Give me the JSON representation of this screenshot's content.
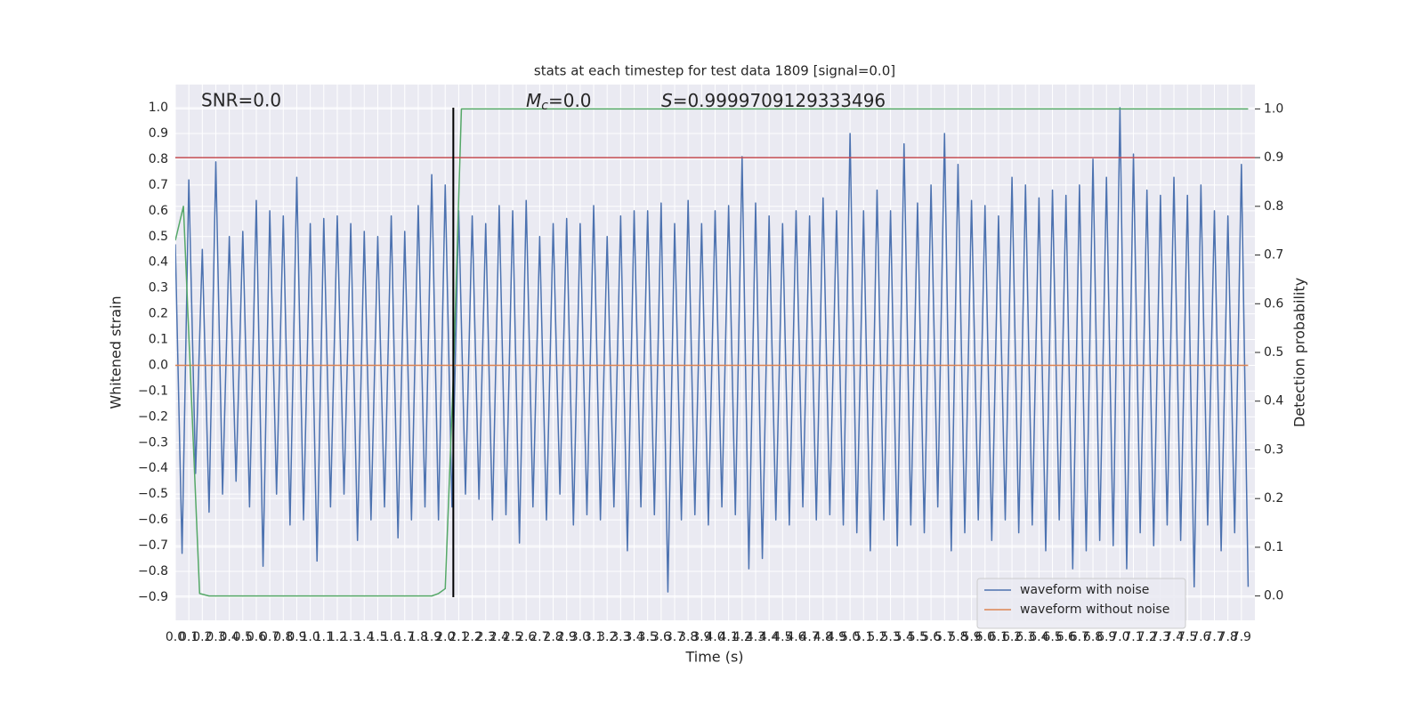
{
  "chart_data": {
    "type": "line",
    "title": "stats at each timestep for test data 1809 [signal=0.0]",
    "xlabel": "Time (s)",
    "ylabel": "Whitened strain",
    "y2label": "Detection probability",
    "annotations": {
      "snr": "SNR=0.0",
      "mc": {
        "symbol": "M",
        "subscript": "c",
        "text": "=0.0"
      },
      "s": {
        "symbol": "S",
        "text": "=0.9999709129333496"
      }
    },
    "xlim": [
      0,
      8.0
    ],
    "ylim": [
      -0.99,
      1.09
    ],
    "y2lim": [
      -0.05,
      1.05
    ],
    "grid": true,
    "legend": "lower right",
    "xticks": [
      {
        "value": 0,
        "label": "0.0"
      },
      0.1,
      0.2,
      0.3,
      0.4,
      0.5,
      0.6,
      0.7,
      0.8,
      0.9,
      {
        "value": 1,
        "label": "1.0"
      },
      1.1,
      1.2,
      1.3,
      1.4,
      1.5,
      1.6,
      1.7,
      1.8,
      1.9,
      {
        "value": 2,
        "label": "2.0"
      },
      2.1,
      2.2,
      2.3,
      2.4,
      2.5,
      2.6,
      2.7,
      2.8,
      2.9,
      {
        "value": 3,
        "label": "3.0"
      },
      3.1,
      3.2,
      3.3,
      3.4,
      3.5,
      3.6,
      3.7,
      3.8,
      3.9,
      {
        "value": 4,
        "label": "4.0"
      },
      4.1,
      4.2,
      4.3,
      4.4,
      4.5,
      4.6,
      4.7,
      4.8,
      4.9,
      {
        "value": 5,
        "label": "5.0"
      },
      5.1,
      5.2,
      5.3,
      5.4,
      5.5,
      5.6,
      5.7,
      5.8,
      5.9,
      {
        "value": 6,
        "label": "6.0"
      },
      6.1,
      6.2,
      6.3,
      6.4,
      6.5,
      6.6,
      6.7,
      6.8,
      6.9,
      {
        "value": 7,
        "label": "7.0"
      },
      7.1,
      7.2,
      7.3,
      7.4,
      7.5,
      7.6,
      7.7,
      7.8,
      7.9
    ],
    "yticks": [
      {
        "value": -0.9,
        "label": "−0.9"
      },
      {
        "value": -0.8,
        "label": "−0.8"
      },
      {
        "value": -0.7,
        "label": "−0.7"
      },
      {
        "value": -0.6,
        "label": "−0.6"
      },
      {
        "value": -0.5,
        "label": "−0.5"
      },
      {
        "value": -0.4,
        "label": "−0.4"
      },
      {
        "value": -0.3,
        "label": "−0.3"
      },
      {
        "value": -0.2,
        "label": "−0.2"
      },
      {
        "value": -0.1,
        "label": "−0.1"
      },
      {
        "value": 0,
        "label": "0.0"
      },
      0.1,
      0.2,
      0.3,
      0.4,
      0.5,
      0.6,
      0.7,
      0.8,
      0.9,
      {
        "value": 1,
        "label": "1.0"
      }
    ],
    "y2ticks": [
      {
        "value": 0,
        "label": "0.0"
      },
      0.1,
      0.2,
      0.3,
      0.4,
      0.5,
      0.6,
      0.7,
      0.8,
      0.9,
      {
        "value": 1,
        "label": "1.0"
      }
    ],
    "series": [
      {
        "name": "waveform with noise",
        "color": "#4c72b0",
        "x": [
          0,
          0.05,
          0.1,
          0.15,
          0.2,
          0.25,
          0.3,
          0.35,
          0.4,
          0.45,
          0.5,
          0.55,
          0.6,
          0.65,
          0.7,
          0.75,
          0.8,
          0.85,
          0.9,
          0.95,
          1,
          1.05,
          1.1,
          1.15,
          1.2,
          1.25,
          1.3,
          1.35,
          1.4,
          1.45,
          1.5,
          1.55,
          1.6,
          1.65,
          1.7,
          1.75,
          1.8,
          1.85,
          1.9,
          1.95,
          2,
          2.05,
          2.1,
          2.15,
          2.2,
          2.25,
          2.3,
          2.35,
          2.4,
          2.45,
          2.5,
          2.55,
          2.6,
          2.65,
          2.7,
          2.75,
          2.8,
          2.85,
          2.9,
          2.95,
          3,
          3.05,
          3.1,
          3.15,
          3.2,
          3.25,
          3.3,
          3.35,
          3.4,
          3.45,
          3.5,
          3.55,
          3.6,
          3.65,
          3.7,
          3.75,
          3.8,
          3.85,
          3.9,
          3.95,
          4,
          4.05,
          4.1,
          4.15,
          4.2,
          4.25,
          4.3,
          4.35,
          4.4,
          4.45,
          4.5,
          4.55,
          4.6,
          4.65,
          4.7,
          4.75,
          4.8,
          4.85,
          4.9,
          4.95,
          5,
          5.05,
          5.1,
          5.15,
          5.2,
          5.25,
          5.3,
          5.35,
          5.4,
          5.45,
          5.5,
          5.55,
          5.6,
          5.65,
          5.7,
          5.75,
          5.8,
          5.85,
          5.9,
          5.95,
          6,
          6.05,
          6.1,
          6.15,
          6.2,
          6.25,
          6.3,
          6.35,
          6.4,
          6.45,
          6.5,
          6.55,
          6.6,
          6.65,
          6.7,
          6.75,
          6.8,
          6.85,
          6.9,
          6.95,
          7,
          7.05,
          7.1,
          7.15,
          7.2,
          7.25,
          7.3,
          7.35,
          7.4,
          7.45,
          7.5,
          7.55,
          7.6,
          7.65,
          7.7,
          7.75,
          7.8,
          7.85,
          7.9,
          7.95
        ],
        "values": [
          0.47,
          -0.73,
          0.72,
          -0.42,
          0.45,
          -0.57,
          0.79,
          -0.5,
          0.5,
          -0.45,
          0.52,
          -0.55,
          0.64,
          -0.78,
          0.6,
          -0.5,
          0.58,
          -0.62,
          0.73,
          -0.6,
          0.55,
          -0.76,
          0.57,
          -0.55,
          0.58,
          -0.5,
          0.55,
          -0.68,
          0.52,
          -0.6,
          0.5,
          -0.55,
          0.58,
          -0.67,
          0.52,
          -0.6,
          0.62,
          -0.55,
          0.74,
          -0.6,
          0.7,
          -0.55,
          0.6,
          -0.5,
          0.58,
          -0.52,
          0.55,
          -0.6,
          0.62,
          -0.58,
          0.6,
          -0.69,
          0.64,
          -0.55,
          0.5,
          -0.6,
          0.55,
          -0.5,
          0.57,
          -0.62,
          0.55,
          -0.58,
          0.62,
          -0.6,
          0.5,
          -0.55,
          0.58,
          -0.72,
          0.6,
          -0.55,
          0.6,
          -0.58,
          0.63,
          -0.88,
          0.55,
          -0.6,
          0.64,
          -0.58,
          0.55,
          -0.62,
          0.6,
          -0.55,
          0.62,
          -0.58,
          0.81,
          -0.79,
          0.63,
          -0.75,
          0.58,
          -0.6,
          0.55,
          -0.62,
          0.6,
          -0.55,
          0.58,
          -0.6,
          0.65,
          -0.58,
          0.6,
          -0.62,
          0.9,
          -0.65,
          0.6,
          -0.72,
          0.68,
          -0.6,
          0.6,
          -0.7,
          0.86,
          -0.62,
          0.63,
          -0.65,
          0.7,
          -0.55,
          0.9,
          -0.72,
          0.78,
          -0.65,
          0.64,
          -0.6,
          0.62,
          -0.68,
          0.58,
          -0.6,
          0.73,
          -0.65,
          0.7,
          -0.62,
          0.65,
          -0.72,
          0.68,
          -0.6,
          0.66,
          -0.79,
          0.7,
          -0.72,
          0.8,
          -0.68,
          0.73,
          -0.7,
          1.0,
          -0.79,
          0.82,
          -0.65,
          0.68,
          -0.7,
          0.66,
          -0.62,
          0.73,
          -0.68,
          0.66,
          -0.86,
          0.7,
          -0.62,
          0.6,
          -0.72,
          0.58,
          -0.65,
          0.78,
          -0.86
        ]
      },
      {
        "name": "waveform without noise",
        "color": "#dd8452",
        "x": [
          0,
          7.95
        ],
        "values": [
          0,
          0
        ]
      },
      {
        "color": "#55a868",
        "axis": "y2",
        "x": [
          0,
          0.06,
          0.18,
          0.25,
          1.9,
          1.95,
          2.0,
          2.06,
          2.12,
          7.95
        ],
        "values": [
          0.73,
          0.8,
          0.005,
          0,
          0,
          0.005,
          0.015,
          0.45,
          1.0,
          1.0
        ]
      }
    ],
    "hlines": [
      {
        "value": 0.9,
        "axis": "y2",
        "color": "#c44e52"
      }
    ],
    "vlines": [
      {
        "value": 2.06,
        "color": "#000000"
      }
    ]
  }
}
